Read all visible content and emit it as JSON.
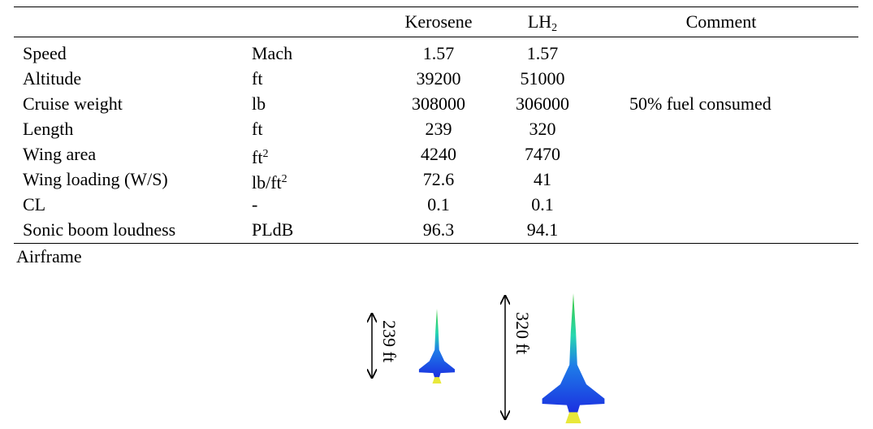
{
  "table": {
    "header": [
      null,
      null,
      {
        "text": "Kerosene"
      },
      {
        "text": "LH",
        "sub": "2"
      },
      {
        "text": "Comment"
      }
    ],
    "rows": [
      {
        "label": "Speed",
        "unit": {
          "text": "Mach"
        },
        "kerosene": 1.57,
        "lh2": 1.57
      },
      {
        "label": "Altitude",
        "unit": {
          "text": "ft"
        },
        "kerosene": 39200,
        "lh2": 51000
      },
      {
        "label": "Cruise weight",
        "unit": {
          "text": "lb"
        },
        "kerosene": 308000,
        "lh2": 306000,
        "comment": "50% fuel consumed"
      },
      {
        "label": "Length",
        "unit": {
          "text": "ft"
        },
        "kerosene": 239,
        "lh2": 320
      },
      {
        "label": "Wing area",
        "unit": {
          "text": "ft",
          "sup": "2"
        },
        "kerosene": 4240,
        "lh2": 7470
      },
      {
        "label": "Wing loading (W/S)",
        "unit": {
          "text": "lb/ft",
          "sup": "2"
        },
        "kerosene": 72.6,
        "lh2": 41
      },
      {
        "label": "CL",
        "unit": {
          "text": "-"
        },
        "kerosene": 0.1,
        "lh2": 0.1
      },
      {
        "label": "Sonic boom loudness",
        "unit": {
          "text": "PLdB"
        },
        "kerosene": 96.3,
        "lh2": 94.1
      }
    ],
    "airframe": {
      "label": "Airframe",
      "kerosene_length": "239 ft",
      "lh2_length": "320 ft"
    }
  }
}
